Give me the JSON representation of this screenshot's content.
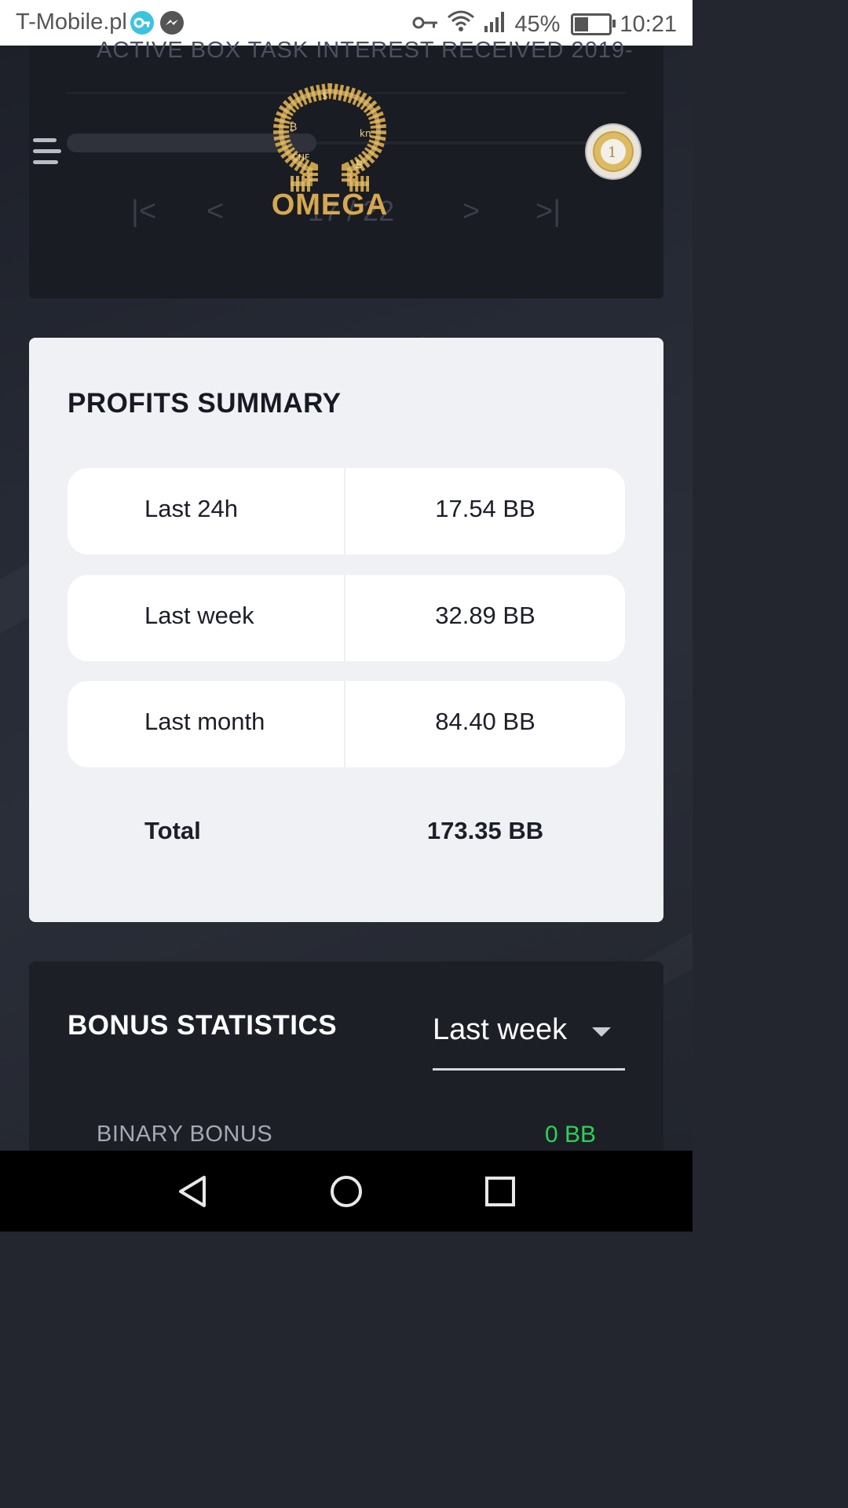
{
  "status_bar": {
    "carrier": "T-Mobile.pl",
    "battery": "45%",
    "battery_level": 0.45,
    "time": "10:21",
    "icons": [
      "vpn-app-icon",
      "messenger-icon",
      "key-icon",
      "wifi-icon",
      "signal-icon",
      "battery-icon"
    ]
  },
  "header": {
    "logo_text": "OMEGA",
    "menu_icon": "hamburger-menu-icon",
    "avatar_icon": "euro-coin-avatar"
  },
  "top_card": {
    "faded_heading": "ACTIVE BOX TASK INTEREST RECEIVED 2019-",
    "pager": {
      "first": "|<",
      "prev": "<",
      "page_info": "17 / 22",
      "next": ">",
      "last": ">|"
    }
  },
  "profits_summary": {
    "title": "PROFITS SUMMARY",
    "rows": [
      {
        "label": "Last 24h",
        "value": "17.54 BB"
      },
      {
        "label": "Last week",
        "value": "32.89 BB"
      },
      {
        "label": "Last month",
        "value": "84.40 BB"
      }
    ],
    "total": {
      "label": "Total",
      "value": "173.35 BB"
    }
  },
  "bonus_statistics": {
    "title": "BONUS STATISTICS",
    "period_selected": "Last week",
    "items": [
      {
        "label": "BINARY BONUS",
        "value": "0 BB"
      }
    ]
  },
  "colors": {
    "accent_gold": "#d7a84f",
    "positive_green": "#2fd05a",
    "card_light": "#f0f1f4",
    "card_dark": "#1d1f27"
  }
}
